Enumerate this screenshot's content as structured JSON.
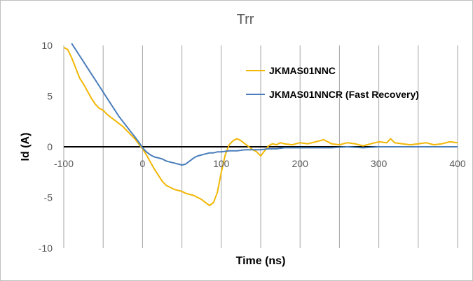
{
  "chart_data": {
    "type": "line",
    "title": "Trr",
    "xlabel": "Time (ns)",
    "ylabel": "Id (A)",
    "xlim": [
      -100,
      400
    ],
    "ylim": [
      -10,
      10
    ],
    "x_ticks": [
      -100,
      0,
      100,
      200,
      300,
      400
    ],
    "y_ticks": [
      10,
      5,
      0,
      -5,
      -10
    ],
    "x_gridlines": [
      -100,
      -50,
      0,
      50,
      100,
      150,
      200,
      250,
      300,
      350,
      400
    ],
    "grid": "vertical",
    "legend_position": "top-right",
    "series": [
      {
        "name": "JKMAS01NNC",
        "color": "#f2b705",
        "x": [
          -100,
          -95,
          -90,
          -85,
          -80,
          -75,
          -70,
          -65,
          -60,
          -55,
          -50,
          -45,
          -40,
          -35,
          -30,
          -25,
          -20,
          -15,
          -10,
          -5,
          0,
          5,
          10,
          15,
          20,
          25,
          30,
          35,
          40,
          45,
          50,
          55,
          60,
          65,
          70,
          75,
          80,
          85,
          90,
          95,
          100,
          105,
          110,
          115,
          120,
          125,
          130,
          135,
          140,
          145,
          150,
          155,
          160,
          165,
          170,
          175,
          180,
          190,
          200,
          210,
          220,
          230,
          240,
          250,
          260,
          270,
          280,
          290,
          300,
          310,
          315,
          320,
          330,
          340,
          350,
          360,
          370,
          380,
          390,
          400
        ],
        "y": [
          9.8,
          9.6,
          8.8,
          7.8,
          6.8,
          6.2,
          5.5,
          4.8,
          4.2,
          3.8,
          3.6,
          3.2,
          2.9,
          2.6,
          2.3,
          2.0,
          1.6,
          1.2,
          0.8,
          0.3,
          -0.2,
          -0.8,
          -1.5,
          -2.2,
          -2.8,
          -3.4,
          -3.8,
          -4.0,
          -4.2,
          -4.3,
          -4.4,
          -4.6,
          -4.7,
          -4.8,
          -5.0,
          -5.2,
          -5.5,
          -5.8,
          -5.5,
          -4.5,
          -2.5,
          -0.8,
          0.2,
          0.6,
          0.8,
          0.6,
          0.3,
          0.0,
          -0.3,
          -0.5,
          -0.9,
          -0.4,
          0.1,
          0.3,
          0.2,
          0.4,
          0.3,
          0.2,
          0.4,
          0.3,
          0.5,
          0.7,
          0.3,
          0.2,
          0.4,
          0.3,
          0.1,
          0.3,
          0.5,
          0.4,
          0.8,
          0.4,
          0.3,
          0.2,
          0.3,
          0.4,
          0.2,
          0.3,
          0.5,
          0.4
        ]
      },
      {
        "name": "JKMAS01NNCR (Fast Recovery)",
        "color": "#4a7ebb",
        "x": [
          -90,
          -85,
          -80,
          -75,
          -70,
          -65,
          -60,
          -55,
          -50,
          -45,
          -40,
          -35,
          -30,
          -25,
          -20,
          -15,
          -10,
          -5,
          0,
          5,
          10,
          15,
          20,
          25,
          30,
          35,
          40,
          45,
          50,
          55,
          60,
          65,
          70,
          75,
          80,
          85,
          90,
          95,
          100,
          110,
          120,
          130,
          140,
          150,
          160,
          170,
          180,
          200,
          220,
          240,
          260,
          280,
          300,
          320,
          340,
          360,
          380,
          400
        ],
        "y": [
          10.2,
          9.6,
          9.0,
          8.4,
          7.8,
          7.2,
          6.6,
          6.0,
          5.4,
          4.8,
          4.2,
          3.6,
          3.0,
          2.5,
          2.0,
          1.5,
          1.0,
          0.5,
          -0.1,
          -0.5,
          -0.8,
          -1.0,
          -1.1,
          -1.2,
          -1.4,
          -1.5,
          -1.6,
          -1.7,
          -1.8,
          -1.7,
          -1.4,
          -1.1,
          -0.9,
          -0.8,
          -0.7,
          -0.6,
          -0.6,
          -0.5,
          -0.5,
          -0.4,
          -0.4,
          -0.3,
          -0.3,
          -0.3,
          -0.2,
          -0.2,
          -0.1,
          -0.1,
          -0.1,
          -0.1,
          0.0,
          -0.1,
          0.0,
          0.0,
          0.0,
          0.0,
          0.0,
          0.0
        ]
      }
    ]
  }
}
